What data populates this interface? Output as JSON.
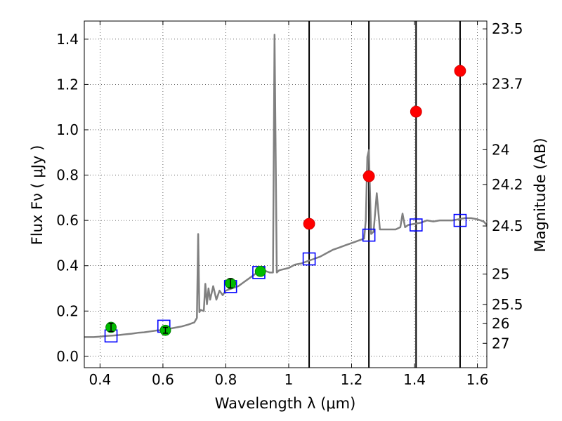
{
  "chart_data": {
    "type": "scatter",
    "title": "",
    "xlabel": "Wavelength  λ (μm)",
    "ylabel": "Flux  Fν  ( μJy )",
    "ylabel_right": "Magnitude (AB)",
    "xlim": [
      0.35,
      1.63
    ],
    "ylim": [
      -0.05,
      1.48
    ],
    "grid": true,
    "x_ticks": [
      {
        "value": 0.4,
        "label": "0.4"
      },
      {
        "value": 0.6,
        "label": "0.6"
      },
      {
        "value": 0.8,
        "label": "0.8"
      },
      {
        "value": 1.0,
        "label": "1"
      },
      {
        "value": 1.2,
        "label": "1.2"
      },
      {
        "value": 1.4,
        "label": "1.4"
      },
      {
        "value": 1.6,
        "label": "1.6"
      }
    ],
    "y_ticks": [
      {
        "value": 0.0,
        "label": "0.0"
      },
      {
        "value": 0.2,
        "label": "0.2"
      },
      {
        "value": 0.4,
        "label": "0.4"
      },
      {
        "value": 0.6,
        "label": "0.6"
      },
      {
        "value": 0.8,
        "label": "0.8"
      },
      {
        "value": 1.0,
        "label": "1.0"
      },
      {
        "value": 1.2,
        "label": "1.2"
      },
      {
        "value": 1.4,
        "label": "1.4"
      }
    ],
    "right_ticks": [
      {
        "label": "23.5",
        "mag": 23.5
      },
      {
        "label": "23.7",
        "mag": 23.7
      },
      {
        "label": "24",
        "mag": 24.0
      },
      {
        "label": "24.2",
        "mag": 24.2
      },
      {
        "label": "24.5",
        "mag": 24.5
      },
      {
        "label": "25",
        "mag": 25.0
      },
      {
        "label": "25.5",
        "mag": 25.5
      },
      {
        "label": "26",
        "mag": 26.0
      },
      {
        "label": "27",
        "mag": 27.0
      }
    ],
    "vertical_lines": [
      1.065,
      1.255,
      1.405,
      1.545
    ],
    "spectrum": {
      "color": "#808080",
      "points": [
        [
          0.35,
          0.085
        ],
        [
          0.38,
          0.085
        ],
        [
          0.4,
          0.087
        ],
        [
          0.42,
          0.09
        ],
        [
          0.44,
          0.092
        ],
        [
          0.46,
          0.094
        ],
        [
          0.48,
          0.097
        ],
        [
          0.5,
          0.1
        ],
        [
          0.52,
          0.104
        ],
        [
          0.54,
          0.106
        ],
        [
          0.56,
          0.11
        ],
        [
          0.58,
          0.114
        ],
        [
          0.6,
          0.116
        ],
        [
          0.62,
          0.122
        ],
        [
          0.64,
          0.127
        ],
        [
          0.66,
          0.132
        ],
        [
          0.68,
          0.14
        ],
        [
          0.7,
          0.15
        ],
        [
          0.708,
          0.17
        ],
        [
          0.712,
          0.54
        ],
        [
          0.716,
          0.195
        ],
        [
          0.72,
          0.205
        ],
        [
          0.73,
          0.2
        ],
        [
          0.735,
          0.32
        ],
        [
          0.74,
          0.23
        ],
        [
          0.745,
          0.3
        ],
        [
          0.75,
          0.25
        ],
        [
          0.76,
          0.31
        ],
        [
          0.77,
          0.25
        ],
        [
          0.78,
          0.29
        ],
        [
          0.79,
          0.27
        ],
        [
          0.8,
          0.29
        ],
        [
          0.82,
          0.3
        ],
        [
          0.84,
          0.31
        ],
        [
          0.86,
          0.33
        ],
        [
          0.88,
          0.35
        ],
        [
          0.9,
          0.37
        ],
        [
          0.92,
          0.38
        ],
        [
          0.94,
          0.37
        ],
        [
          0.95,
          0.37
        ],
        [
          0.955,
          1.42
        ],
        [
          0.962,
          0.37
        ],
        [
          0.97,
          0.38
        ],
        [
          1.0,
          0.39
        ],
        [
          1.02,
          0.405
        ],
        [
          1.04,
          0.41
        ],
        [
          1.06,
          0.42
        ],
        [
          1.08,
          0.43
        ],
        [
          1.1,
          0.44
        ],
        [
          1.12,
          0.455
        ],
        [
          1.14,
          0.47
        ],
        [
          1.16,
          0.48
        ],
        [
          1.18,
          0.49
        ],
        [
          1.2,
          0.5
        ],
        [
          1.22,
          0.51
        ],
        [
          1.24,
          0.52
        ],
        [
          1.245,
          0.6
        ],
        [
          1.25,
          0.88
        ],
        [
          1.255,
          0.91
        ],
        [
          1.262,
          0.54
        ],
        [
          1.27,
          0.55
        ],
        [
          1.28,
          0.72
        ],
        [
          1.29,
          0.56
        ],
        [
          1.3,
          0.56
        ],
        [
          1.32,
          0.56
        ],
        [
          1.34,
          0.56
        ],
        [
          1.355,
          0.57
        ],
        [
          1.362,
          0.63
        ],
        [
          1.37,
          0.57
        ],
        [
          1.38,
          0.58
        ],
        [
          1.4,
          0.585
        ],
        [
          1.42,
          0.59
        ],
        [
          1.44,
          0.6
        ],
        [
          1.46,
          0.595
        ],
        [
          1.48,
          0.6
        ],
        [
          1.5,
          0.6
        ],
        [
          1.52,
          0.6
        ],
        [
          1.54,
          0.605
        ],
        [
          1.56,
          0.61
        ],
        [
          1.58,
          0.61
        ],
        [
          1.6,
          0.605
        ],
        [
          1.62,
          0.595
        ],
        [
          1.63,
          0.58
        ]
      ]
    },
    "red_points": [
      [
        1.065,
        0.585
      ],
      [
        1.255,
        0.795
      ],
      [
        1.405,
        1.08
      ],
      [
        1.545,
        1.26
      ]
    ],
    "green_points": [
      {
        "x": 0.435,
        "y": 0.128,
        "err": 0.018
      },
      {
        "x": 0.608,
        "y": 0.115,
        "err": 0.013
      },
      {
        "x": 0.815,
        "y": 0.322,
        "err": 0.02
      },
      {
        "x": 0.91,
        "y": 0.375,
        "err": 0.0
      }
    ],
    "blue_squares": [
      [
        0.435,
        0.09
      ],
      [
        0.603,
        0.133
      ],
      [
        0.815,
        0.308
      ],
      [
        0.905,
        0.37
      ],
      [
        1.065,
        0.43
      ],
      [
        1.255,
        0.535
      ],
      [
        1.405,
        0.58
      ],
      [
        1.545,
        0.6
      ]
    ],
    "colors": {
      "red": "#ff0000",
      "green": "#00bb00",
      "blue": "#0000ff",
      "spectrum": "#808080"
    }
  }
}
